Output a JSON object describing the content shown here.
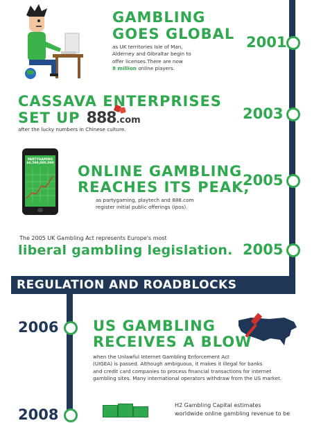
{
  "sections": [
    {
      "year": "2001",
      "title_line1": "GAMBLING",
      "title_line2": "GOES GLOBAL",
      "body_lines": [
        "as UK territories Isle of Man,",
        "Alderney and Gibraltar begin to",
        "offer licenses.There are now"
      ],
      "highlight": "8 million",
      "body_tail": " online players."
    },
    {
      "year": "2003",
      "title_line1": "CASSAVA ENTERPRISES",
      "title_line2": "SET UP",
      "logo_text": "888",
      "logo_suffix": ".com",
      "body": "after the lucky numbers in Chinese culture."
    },
    {
      "year": "2005",
      "title_line1": "ONLINE GAMBLING",
      "title_line2": "REACHES ITS PEAK,",
      "phone_brand": "PARTYGAMING",
      "phone_value": "$6,500,000,000",
      "body_lines": [
        "as partygaming, playtech and 888.com",
        "register initial public offerings (ipos)."
      ]
    },
    {
      "year": "2005",
      "intro": "The 2005 UK Gambling Act represents Europe's most",
      "title": "liberal gambling legislation."
    }
  ],
  "banner": "REGULATION AND ROADBLOCKS",
  "section_2006": {
    "year": "2006",
    "title_line1": "US GAMBLING",
    "title_line2": "RECEIVES A BLOW",
    "body_lines": [
      "when the Unlawful Internet Gambling Enforcement Act",
      "(UIGEA) is passed. Although ambiguous, it makes it illegal for banks",
      "and credit card companies to process financial transactions for internet",
      "gambling sites. Many international operators withdraw from the US market."
    ]
  },
  "section_2008": {
    "year": "2008",
    "body_lines": [
      "H2 Gambling Capital estimates",
      "worldwide online gambling revenue to be"
    ]
  },
  "colors": {
    "green": "#2fa84f",
    "navy": "#1f3656",
    "red": "#d0312d"
  }
}
